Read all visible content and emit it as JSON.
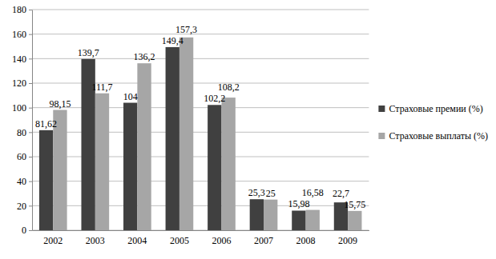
{
  "chart_data": {
    "type": "bar",
    "categories": [
      "2002",
      "2003",
      "2004",
      "2005",
      "2006",
      "2007",
      "2008",
      "2009"
    ],
    "series": [
      {
        "name": "Страховые премии (%)",
        "color": "#404040",
        "values": [
          81.62,
          139.7,
          104,
          149.4,
          102.2,
          25.3,
          15.98,
          22.7
        ],
        "value_labels": [
          "81,62",
          "139,7",
          "104",
          "149,4",
          "102,2",
          "25,3",
          "15,98",
          "22,7"
        ]
      },
      {
        "name": "Страховые выплаты (%)",
        "color": "#a6a6a6",
        "values": [
          98.15,
          111.7,
          136.2,
          157.3,
          108.2,
          25,
          16.58,
          15.75
        ],
        "value_labels": [
          "98,15",
          "111,7",
          "136,2",
          "157,3",
          "108,2",
          "25",
          "16,58",
          "15,75"
        ]
      }
    ],
    "ylim": [
      0,
      180
    ],
    "yticks": [
      0,
      20,
      40,
      60,
      80,
      100,
      120,
      140,
      160,
      180
    ],
    "grid": true,
    "legend": "right",
    "data_labels": true
  }
}
